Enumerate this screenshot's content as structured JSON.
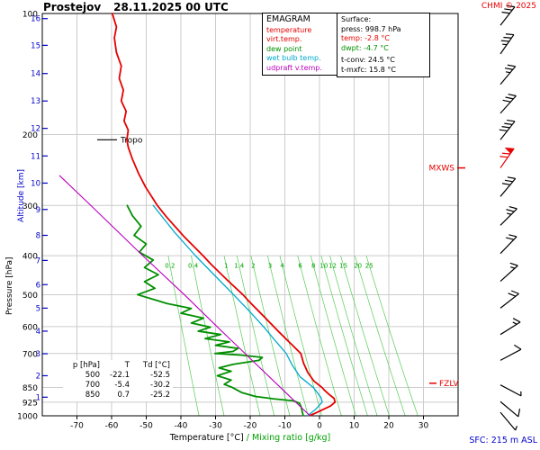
{
  "header": {
    "station": "Prostejov",
    "datetime": "28.11.2025 00 UTC",
    "copyright": "CHMI © 2025"
  },
  "legend": {
    "title": "EMAGRAM",
    "items": [
      {
        "label": "temperature",
        "color": "#e60000"
      },
      {
        "label": "virt.temp.",
        "color": "#e60000"
      },
      {
        "label": "dew point",
        "color": "#008f00"
      },
      {
        "label": "wet bulb temp.",
        "color": "#00a8cc"
      },
      {
        "label": "udpraft v.temp.",
        "color": "#bb00bb"
      }
    ]
  },
  "surface_box": {
    "title": "Surface:",
    "press": "press: 998.7 hPa",
    "temp": "temp: -2.8 °C",
    "dwpt": "dwpt: -4.7 °C",
    "tconv": "t-conv: 24.5 °C",
    "tmxfc": "t-mxfc: 15.8 °C"
  },
  "levels_table": {
    "header": [
      "p [hPa]",
      "T",
      "Td [°C]"
    ],
    "rows": [
      [
        "500",
        "-22.1",
        "-52.5"
      ],
      [
        "700",
        "-5.4",
        "-30.2"
      ],
      [
        "850",
        "0.7",
        "-25.2"
      ]
    ]
  },
  "annotations": {
    "tropo": "Tropo",
    "mxws": "MXWS",
    "fzlv": "FZLV",
    "sfc": "SFC: 215 m ASL"
  },
  "axis_captions": {
    "x_black": "Temperature [°C]",
    "x_green": "/ Mixing ratio [g/kg]",
    "pressure": "Pressure [hPa]",
    "altitude": "Altitude [km]"
  },
  "colors": {
    "grid": "#cccccc",
    "border": "#000000",
    "altitude_axis": "#0000cc",
    "copyright": "#e60000",
    "annotation_red": "#e60000"
  },
  "chart_data": {
    "type": "line",
    "subtype": "emagram-sounding",
    "title": "Prostejov 28.11.2025 00 UTC",
    "x_axis": {
      "label": "Temperature [°C]",
      "min": -80,
      "max": 40,
      "ticks": [
        -70,
        -60,
        -50,
        -40,
        -30,
        -20,
        -10,
        0,
        10,
        20,
        30
      ]
    },
    "y_axis": {
      "label": "Pressure [hPa]",
      "scale": "log",
      "min": 100,
      "max": 1000,
      "ticks": [
        100,
        200,
        300,
        400,
        500,
        600,
        700,
        850,
        925,
        1000
      ]
    },
    "altitude_axis": {
      "label": "Altitude [km]",
      "ticks": [
        {
          "km": 1,
          "hpa": 899
        },
        {
          "km": 2,
          "hpa": 795
        },
        {
          "km": 3,
          "hpa": 701
        },
        {
          "km": 4,
          "hpa": 616
        },
        {
          "km": 5,
          "hpa": 540
        },
        {
          "km": 6,
          "hpa": 472
        },
        {
          "km": 7,
          "hpa": 411
        },
        {
          "km": 8,
          "hpa": 356
        },
        {
          "km": 9,
          "hpa": 307
        },
        {
          "km": 10,
          "hpa": 264
        },
        {
          "km": 11,
          "hpa": 226
        },
        {
          "km": 12,
          "hpa": 193
        },
        {
          "km": 13,
          "hpa": 165
        },
        {
          "km": 14,
          "hpa": 141
        },
        {
          "km": 15,
          "hpa": 120
        },
        {
          "km": 16,
          "hpa": 103
        }
      ]
    },
    "mixing_ratio": {
      "label": "Mixing ratio [g/kg]",
      "values": [
        "0.2",
        "0.4",
        "1",
        "1.4",
        "2",
        "3",
        "4",
        "6",
        "8",
        "10",
        "12",
        "15",
        "20",
        "25"
      ],
      "label_pressure": 423,
      "line_color": "#55cc55",
      "label_color": "#00a000"
    },
    "surface": {
      "press_hpa": 998.7,
      "temp_c": -2.8,
      "dwpt_c": -4.7,
      "t_conv_c": 24.5,
      "t_mxfc_c": 15.8,
      "station_elev": "215 m ASL"
    },
    "markers": {
      "tropopause_hpa": 206,
      "mxws_hpa": 242,
      "fzlv_hpa": 830
    },
    "series": [
      {
        "name": "temperature",
        "color": "#e60000",
        "width": 1.8,
        "points": [
          [
            998.7,
            -2.8
          ],
          [
            985,
            -1.2
          ],
          [
            965,
            1.0
          ],
          [
            945,
            3.2
          ],
          [
            925,
            4.5
          ],
          [
            905,
            4.2
          ],
          [
            885,
            2.8
          ],
          [
            865,
            1.5
          ],
          [
            850,
            0.7
          ],
          [
            820,
            -1.6
          ],
          [
            780,
            -3.4
          ],
          [
            740,
            -4.6
          ],
          [
            700,
            -5.4
          ],
          [
            660,
            -8.4
          ],
          [
            620,
            -11.6
          ],
          [
            600,
            -13.2
          ],
          [
            560,
            -16.6
          ],
          [
            520,
            -20.3
          ],
          [
            500,
            -22.1
          ],
          [
            460,
            -26.6
          ],
          [
            420,
            -31.3
          ],
          [
            400,
            -33.6
          ],
          [
            360,
            -38.9
          ],
          [
            320,
            -44.2
          ],
          [
            300,
            -46.8
          ],
          [
            270,
            -50.2
          ],
          [
            250,
            -52.2
          ],
          [
            230,
            -54.0
          ],
          [
            215,
            -55.2
          ],
          [
            206,
            -55.6
          ],
          [
            195,
            -55.2
          ],
          [
            185,
            -56.4
          ],
          [
            175,
            -55.8
          ],
          [
            165,
            -57.2
          ],
          [
            155,
            -56.6
          ],
          [
            145,
            -57.8
          ],
          [
            135,
            -57.2
          ],
          [
            125,
            -58.6
          ],
          [
            115,
            -59.2
          ],
          [
            108,
            -58.6
          ],
          [
            100,
            -59.8
          ]
        ]
      },
      {
        "name": "dew point",
        "color": "#008f00",
        "width": 1.8,
        "points": [
          [
            998.7,
            -4.7
          ],
          [
            975,
            -5.0
          ],
          [
            950,
            -5.3
          ],
          [
            930,
            -5.8
          ],
          [
            918,
            -7.5
          ],
          [
            908,
            -13
          ],
          [
            895,
            -18.5
          ],
          [
            875,
            -22.5
          ],
          [
            850,
            -25.2
          ],
          [
            835,
            -27.5
          ],
          [
            815,
            -25.5
          ],
          [
            795,
            -29.5
          ],
          [
            775,
            -25.5
          ],
          [
            760,
            -29
          ],
          [
            745,
            -25
          ],
          [
            728,
            -17.5
          ],
          [
            716,
            -16.5
          ],
          [
            706,
            -23
          ],
          [
            700,
            -30.2
          ],
          [
            692,
            -25
          ],
          [
            680,
            -23.5
          ],
          [
            668,
            -30
          ],
          [
            655,
            -26
          ],
          [
            643,
            -33
          ],
          [
            628,
            -28.5
          ],
          [
            616,
            -35
          ],
          [
            602,
            -31.5
          ],
          [
            588,
            -37
          ],
          [
            572,
            -33.5
          ],
          [
            556,
            -40
          ],
          [
            541,
            -37
          ],
          [
            526,
            -44
          ],
          [
            512,
            -48.5
          ],
          [
            500,
            -52.5
          ],
          [
            482,
            -47.5
          ],
          [
            464,
            -50.5
          ],
          [
            446,
            -46.5
          ],
          [
            428,
            -50.5
          ],
          [
            410,
            -48
          ],
          [
            392,
            -52
          ],
          [
            374,
            -50
          ],
          [
            356,
            -53.5
          ],
          [
            338,
            -51.5
          ],
          [
            318,
            -54
          ],
          [
            300,
            -55.5
          ]
        ]
      },
      {
        "name": "wet bulb temp.",
        "color": "#00a8cc",
        "width": 1.3,
        "points": [
          [
            998.7,
            -3.4
          ],
          [
            965,
            -1.2
          ],
          [
            925,
            0.8
          ],
          [
            900,
            0.4
          ],
          [
            850,
            -1.8
          ],
          [
            800,
            -5.6
          ],
          [
            750,
            -7.8
          ],
          [
            700,
            -9.6
          ],
          [
            650,
            -12.8
          ],
          [
            600,
            -16.2
          ],
          [
            550,
            -20.2
          ],
          [
            500,
            -24.8
          ],
          [
            450,
            -30.0
          ],
          [
            400,
            -35.8
          ],
          [
            350,
            -41.8
          ],
          [
            300,
            -48.0
          ]
        ]
      },
      {
        "name": "udpraft v.temp.",
        "color": "#bb00bb",
        "width": 1.1,
        "points": [
          [
            998.7,
            -2.8
          ],
          [
            900,
            -8.3
          ],
          [
            850,
            -11.3
          ],
          [
            700,
            -21.5
          ],
          [
            600,
            -29.6
          ],
          [
            500,
            -39
          ],
          [
            400,
            -51
          ],
          [
            300,
            -66
          ],
          [
            253,
            -75
          ]
        ]
      }
    ],
    "wind_barbs": [
      {
        "hpa": 107,
        "angle": 38,
        "flags": 0,
        "full": 3,
        "half": 0,
        "color": "#000000"
      },
      {
        "hpa": 126,
        "angle": 35,
        "flags": 0,
        "full": 3,
        "half": 1,
        "color": "#000000"
      },
      {
        "hpa": 150,
        "angle": 40,
        "flags": 0,
        "full": 2,
        "half": 1,
        "color": "#000000"
      },
      {
        "hpa": 177,
        "angle": 42,
        "flags": 0,
        "full": 3,
        "half": 0,
        "color": "#000000"
      },
      {
        "hpa": 206,
        "angle": 38,
        "flags": 0,
        "full": 4,
        "half": 0,
        "color": "#000000"
      },
      {
        "hpa": 242,
        "angle": 35,
        "flags": 1,
        "full": 2,
        "half": 0,
        "color": "#e60000"
      },
      {
        "hpa": 285,
        "angle": 40,
        "flags": 0,
        "full": 3,
        "half": 0,
        "color": "#000000"
      },
      {
        "hpa": 336,
        "angle": 45,
        "flags": 0,
        "full": 2,
        "half": 1,
        "color": "#000000"
      },
      {
        "hpa": 395,
        "angle": 44,
        "flags": 0,
        "full": 2,
        "half": 0,
        "color": "#000000"
      },
      {
        "hpa": 463,
        "angle": 48,
        "flags": 0,
        "full": 1,
        "half": 1,
        "color": "#000000"
      },
      {
        "hpa": 540,
        "angle": 52,
        "flags": 0,
        "full": 2,
        "half": 0,
        "color": "#000000"
      },
      {
        "hpa": 628,
        "angle": 58,
        "flags": 0,
        "full": 1,
        "half": 1,
        "color": "#000000"
      },
      {
        "hpa": 728,
        "angle": 62,
        "flags": 0,
        "full": 1,
        "half": 0,
        "color": "#000000"
      },
      {
        "hpa": 838,
        "angle": 118,
        "flags": 0,
        "full": 0,
        "half": 1,
        "color": "#000000"
      },
      {
        "hpa": 922,
        "angle": 130,
        "flags": 0,
        "full": 1,
        "half": 0,
        "color": "#000000"
      },
      {
        "hpa": 980,
        "angle": 140,
        "flags": 0,
        "full": 0,
        "half": 1,
        "color": "#000000"
      }
    ]
  }
}
